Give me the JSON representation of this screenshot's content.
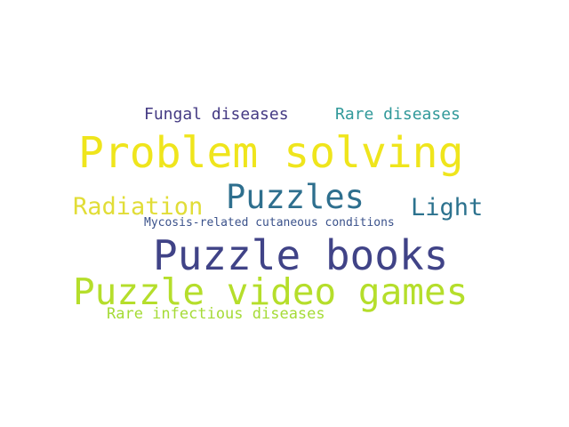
{
  "words": [
    {
      "text": "Fungal diseases",
      "color": "#443a83"
    },
    {
      "text": "Rare diseases",
      "color": "#31999a"
    },
    {
      "text": "Problem solving",
      "color": "#efe51c"
    },
    {
      "text": "Radiation",
      "color": "#e1dd37"
    },
    {
      "text": "Puzzles",
      "color": "#2e6f8e"
    },
    {
      "text": "Light",
      "color": "#2c728e"
    },
    {
      "text": "Mycosis-related cutaneous conditions",
      "color": "#3b528b"
    },
    {
      "text": "Puzzle books",
      "color": "#404387"
    },
    {
      "text": "Puzzle video games",
      "color": "#b5de2b"
    },
    {
      "text": "Rare infectious diseases",
      "color": "#a5db36"
    }
  ]
}
